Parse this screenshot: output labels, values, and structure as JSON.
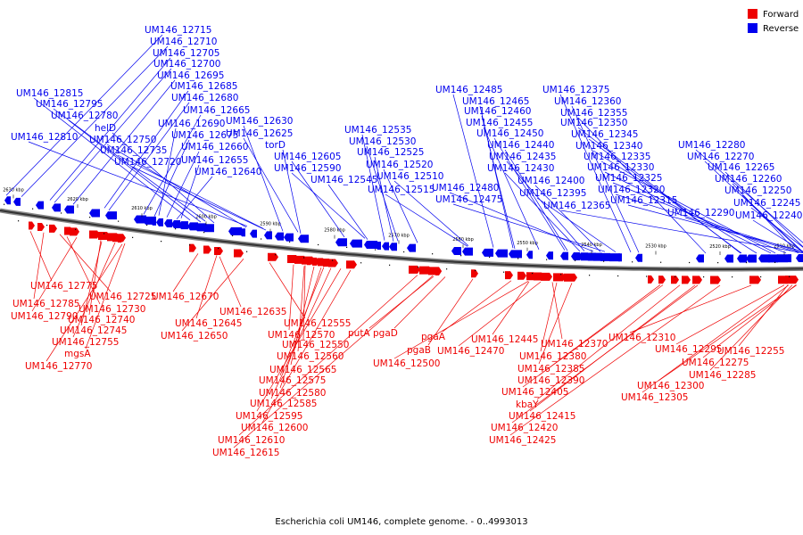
{
  "caption": "Escherichia coli UM146, complete genome. - 0..4993013",
  "legend": [
    {
      "label": "Forward",
      "color": "#ee0000"
    },
    {
      "label": "Reverse",
      "color": "#0000ee"
    }
  ],
  "ticks": [
    "2630 kbp",
    "2620 kbp",
    "2610 kbp",
    "2600 kbp",
    "2590 kbp",
    "2580 kbp",
    "2570 kbp",
    "2560 kbp",
    "2550 kbp",
    "2540 kbp",
    "2530 kbp",
    "2520 kbp",
    "2510 kbp"
  ],
  "reverse_labels": [
    "UM146_12715",
    "UM146_12710",
    "UM146_12705",
    "UM146_12700",
    "UM146_12695",
    "UM146_12685",
    "UM146_12680",
    "UM146_12665",
    "UM146_12690",
    "UM146_12675",
    "UM146_12660",
    "UM146_12655",
    "UM146_12640",
    "UM146_12815",
    "UM146_12795",
    "UM146_12780",
    "helD",
    "UM146_12810",
    "UM146_12750",
    "UM146_12735",
    "UM146_12720",
    "UM146_12630",
    "UM146_12625",
    "torD",
    "UM146_12605",
    "UM146_12590",
    "UM146_12545",
    "UM146_12535",
    "UM146_12530",
    "UM146_12525",
    "UM146_12520",
    "UM146_12510",
    "UM146_12515",
    "UM146_12485",
    "UM146_12465",
    "UM146_12460",
    "UM146_12455",
    "UM146_12450",
    "UM146_12440",
    "UM146_12435",
    "UM146_12430",
    "UM146_12480",
    "UM146_12475",
    "UM146_12400",
    "UM146_12395",
    "UM146_12375",
    "UM146_12360",
    "UM146_12355",
    "UM146_12350",
    "UM146_12345",
    "UM146_12340",
    "UM146_12335",
    "UM146_12330",
    "UM146_12325",
    "UM146_12320",
    "UM146_12365",
    "UM146_12315",
    "UM146_12280",
    "UM146_12270",
    "UM146_12265",
    "UM146_12260",
    "UM146_12250",
    "UM146_12245",
    "UM146_12290",
    "UM146_12240"
  ],
  "forward_labels": [
    "UM146_12775",
    "UM146_12785",
    "UM146_12725",
    "UM146_12730",
    "UM146_12790",
    "UM146_12740",
    "UM146_12745",
    "UM146_12755",
    "mgsA",
    "UM146_12770",
    "UM146_12670",
    "UM146_12645",
    "UM146_12635",
    "UM146_12650",
    "UM146_12555",
    "UM146_12570",
    "UM146_12550",
    "UM146_12560",
    "UM146_12565",
    "UM146_12575",
    "UM146_12580",
    "UM146_12585",
    "UM146_12595",
    "UM146_12600",
    "UM146_12610",
    "UM146_12615",
    "putA",
    "pgaD",
    "pgaB",
    "pgaA",
    "UM146_12500",
    "UM146_12445",
    "UM146_12470",
    "UM146_12370",
    "UM146_12380",
    "UM146_12385",
    "UM146_12390",
    "UM146_12405",
    "kbaY",
    "UM146_12415",
    "UM146_12420",
    "UM146_12425",
    "UM146_12310",
    "UM146_12295",
    "UM146_12275",
    "UM146_12255",
    "UM146_12285",
    "UM146_12300",
    "UM146_12305"
  ]
}
